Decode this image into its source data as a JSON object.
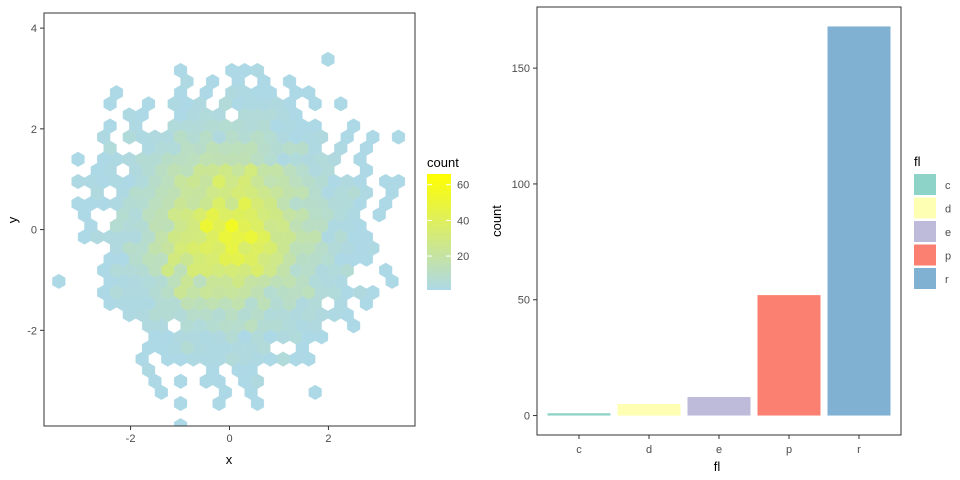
{
  "chart_data": [
    {
      "type": "hexbin",
      "xlabel": "x",
      "ylabel": "y",
      "xlim": [
        -3.75,
        3.75
      ],
      "ylim": [
        -3.9,
        4.3
      ],
      "x_ticks": [
        -2,
        0,
        2
      ],
      "y_ticks": [
        -2,
        0,
        2,
        4
      ],
      "x_tick_labels": [
        "-2",
        "0",
        "2"
      ],
      "y_tick_labels": [
        "-2",
        "0",
        "2",
        "4"
      ],
      "grid": false,
      "distribution": {
        "center": [
          0,
          0
        ],
        "sd": [
          1,
          1
        ],
        "n_points": 5000
      },
      "legend": {
        "title": "count",
        "position": "right",
        "ticks": [
          20,
          40,
          60
        ],
        "tick_labels": [
          "20",
          "40",
          "60"
        ],
        "range": [
          1,
          66
        ],
        "colors": {
          "low": "#ADD8E6",
          "high": "#FFFF00"
        }
      }
    },
    {
      "type": "bar",
      "xlabel": "fl",
      "ylabel": "count",
      "categories": [
        "c",
        "d",
        "e",
        "p",
        "r"
      ],
      "values": [
        1,
        5,
        8,
        52,
        168
      ],
      "colors": [
        "#8DD3C7",
        "#FFFFB3",
        "#BEBADA",
        "#FB8072",
        "#80B1D3"
      ],
      "ylim": [
        -8.4,
        176.4
      ],
      "y_ticks": [
        0,
        50,
        100,
        150
      ],
      "y_tick_labels": [
        "0",
        "50",
        "100",
        "150"
      ],
      "grid": false,
      "legend": {
        "title": "fl",
        "position": "right",
        "labels": [
          "c",
          "d",
          "e",
          "p",
          "r"
        ]
      }
    }
  ]
}
